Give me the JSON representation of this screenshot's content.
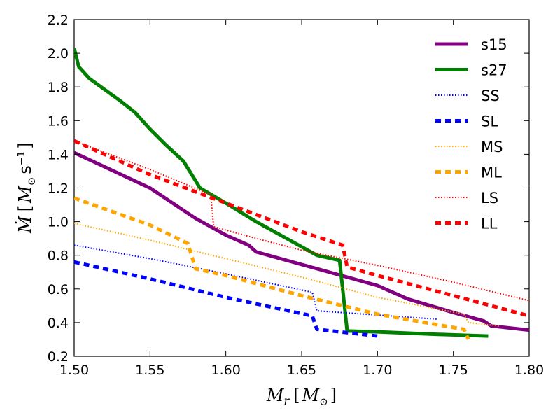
{
  "chart_data": {
    "type": "line",
    "title": "",
    "xlabel": {
      "symbol": "M",
      "sub": "r",
      "bracket_open": "[",
      "unit": "M",
      "unit_sub": "⊙",
      "bracket_close": "]"
    },
    "ylabel": {
      "symbol": "Ṁ",
      "bracket_open": "[",
      "unit": "M",
      "unit_sub": "⊙",
      "unit_s": "s",
      "unit_exp": "−1",
      "bracket_close": "]"
    },
    "xlim": [
      1.5,
      1.8
    ],
    "ylim": [
      0.2,
      2.2
    ],
    "xticks": [
      "1.50",
      "1.55",
      "1.60",
      "1.65",
      "1.70",
      "1.75",
      "1.80"
    ],
    "yticks": [
      "0.2",
      "0.4",
      "0.6",
      "0.8",
      "1.0",
      "1.2",
      "1.4",
      "1.6",
      "1.8",
      "2.0",
      "2.2"
    ],
    "legend_position": "top-right",
    "series": [
      {
        "name": "s15",
        "color": "#800080",
        "style": "solid",
        "width": 5,
        "x": [
          1.5,
          1.55,
          1.58,
          1.6,
          1.615,
          1.62,
          1.66,
          1.7,
          1.72,
          1.75,
          1.77,
          1.775,
          1.8
        ],
        "y": [
          1.41,
          1.2,
          1.02,
          0.92,
          0.86,
          0.82,
          0.72,
          0.62,
          0.54,
          0.46,
          0.41,
          0.38,
          0.355
        ]
      },
      {
        "name": "s27",
        "color": "#008000",
        "style": "solid",
        "width": 5,
        "x": [
          1.5,
          1.503,
          1.51,
          1.53,
          1.54,
          1.55,
          1.56,
          1.572,
          1.583,
          1.6,
          1.62,
          1.64,
          1.66,
          1.675,
          1.68,
          1.7,
          1.74,
          1.773
        ],
        "y": [
          2.03,
          1.92,
          1.85,
          1.72,
          1.65,
          1.55,
          1.46,
          1.36,
          1.2,
          1.11,
          1.0,
          0.9,
          0.8,
          0.77,
          0.35,
          0.345,
          0.33,
          0.32
        ]
      },
      {
        "name": "SS",
        "color": "#0000ff",
        "style": "dotted",
        "width": 2,
        "x": [
          1.5,
          1.55,
          1.6,
          1.657,
          1.66,
          1.7,
          1.74
        ],
        "y": [
          0.86,
          0.78,
          0.69,
          0.58,
          0.47,
          0.445,
          0.42
        ]
      },
      {
        "name": "SL",
        "color": "#0000ff",
        "style": "dashed",
        "width": 5,
        "x": [
          1.5,
          1.55,
          1.6,
          1.657,
          1.66,
          1.68,
          1.7
        ],
        "y": [
          0.76,
          0.66,
          0.55,
          0.44,
          0.36,
          0.34,
          0.32
        ]
      },
      {
        "name": "MS",
        "color": "#ffa500",
        "style": "dotted",
        "width": 2,
        "x": [
          1.5,
          1.55,
          1.6,
          1.65,
          1.7,
          1.757,
          1.76,
          1.78
        ],
        "y": [
          0.99,
          0.89,
          0.78,
          0.67,
          0.55,
          0.45,
          0.4,
          0.38
        ]
      },
      {
        "name": "ML",
        "color": "#ffa500",
        "style": "dashed",
        "width": 5,
        "x": [
          1.5,
          1.55,
          1.575,
          1.58,
          1.6,
          1.65,
          1.7,
          1.757,
          1.76
        ],
        "y": [
          1.14,
          0.98,
          0.87,
          0.72,
          0.68,
          0.56,
          0.45,
          0.36,
          0.3
        ]
      },
      {
        "name": "LS",
        "color": "#ff0000",
        "style": "dotted",
        "width": 2,
        "x": [
          1.5,
          1.55,
          1.59,
          1.592,
          1.62,
          1.65,
          1.7,
          1.75,
          1.8
        ],
        "y": [
          1.48,
          1.31,
          1.16,
          0.97,
          0.9,
          0.83,
          0.74,
          0.64,
          0.53
        ]
      },
      {
        "name": "LL",
        "color": "#ff0000",
        "style": "dashed",
        "width": 5,
        "x": [
          1.5,
          1.55,
          1.6,
          1.65,
          1.677,
          1.68,
          1.7,
          1.75,
          1.8
        ],
        "y": [
          1.48,
          1.28,
          1.11,
          0.94,
          0.86,
          0.73,
          0.68,
          0.56,
          0.44
        ]
      }
    ]
  }
}
